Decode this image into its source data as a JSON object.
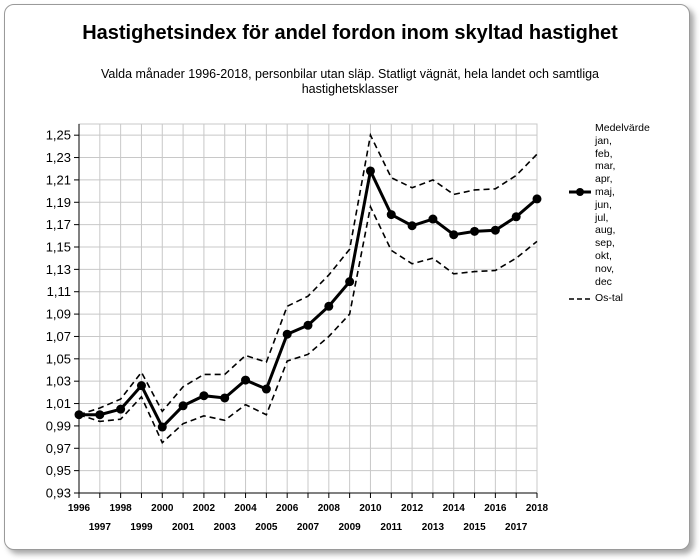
{
  "title": "Hastighetsindex för andel fordon inom skyltad hastighet",
  "subtitle": "Valda månader 1996-2018, personbilar utan släp. Statligt vägnät, hela landet och samtliga hastighetsklasser",
  "chart_data": {
    "type": "line",
    "x": [
      1996,
      1997,
      1998,
      1999,
      2000,
      2001,
      2002,
      2003,
      2004,
      2005,
      2006,
      2007,
      2008,
      2009,
      2010,
      2011,
      2012,
      2013,
      2014,
      2015,
      2016,
      2017,
      2018
    ],
    "series": [
      {
        "name": "Medelvärde jan, feb, mar, apr, maj, jun, jul, aug, sep, okt, nov, dec",
        "style": "solid-markers",
        "values": [
          1.0,
          1.0,
          1.005,
          1.026,
          0.989,
          1.008,
          1.017,
          1.015,
          1.031,
          1.023,
          1.072,
          1.08,
          1.097,
          1.119,
          1.218,
          1.179,
          1.169,
          1.175,
          1.161,
          1.164,
          1.165,
          1.177,
          1.193
        ]
      },
      {
        "name": "Os-tal",
        "style": "dashed",
        "values": [
          1.0,
          1.006,
          1.014,
          1.038,
          1.003,
          1.025,
          1.036,
          1.036,
          1.053,
          1.047,
          1.097,
          1.106,
          1.125,
          1.148,
          1.25,
          1.212,
          1.203,
          1.21,
          1.197,
          1.201,
          1.202,
          1.214,
          1.233
        ]
      },
      {
        "name": "",
        "style": "dashed",
        "values": [
          1.0,
          0.994,
          0.996,
          1.016,
          0.975,
          0.992,
          0.999,
          0.995,
          1.009,
          1.0,
          1.048,
          1.054,
          1.07,
          1.09,
          1.186,
          1.147,
          1.135,
          1.14,
          1.126,
          1.128,
          1.129,
          1.14,
          1.155
        ]
      }
    ],
    "x_ticks_top": [
      "1996",
      "1998",
      "2000",
      "2002",
      "2004",
      "2006",
      "2008",
      "2010",
      "2012",
      "2014",
      "2016",
      "2018"
    ],
    "x_ticks_bottom": [
      "1997",
      "1999",
      "2001",
      "2003",
      "2005",
      "2007",
      "2009",
      "2011",
      "2013",
      "2015",
      "2017"
    ],
    "y_ticks": [
      "0,93",
      "0,95",
      "0,97",
      "0,99",
      "1,01",
      "1,03",
      "1,05",
      "1,07",
      "1,09",
      "1,11",
      "1,13",
      "1,15",
      "1,17",
      "1,19",
      "1,21",
      "1,23",
      "1,25"
    ],
    "ylim": [
      0.93,
      1.26
    ],
    "xlim": [
      1996,
      2018
    ],
    "grid": true,
    "legend_position": "right",
    "legend": {
      "solid_lines": [
        "Medelvärde",
        "jan,",
        "feb,",
        "mar,",
        "apr,",
        "maj,",
        "jun,",
        "jul,",
        "aug,",
        "sep,",
        "okt,",
        "nov,",
        "dec"
      ],
      "dashed_lines": [
        "Os-tal"
      ]
    },
    "colors": {
      "line": "#000000",
      "grid": "#c8c8c8",
      "axis": "#000000"
    }
  }
}
